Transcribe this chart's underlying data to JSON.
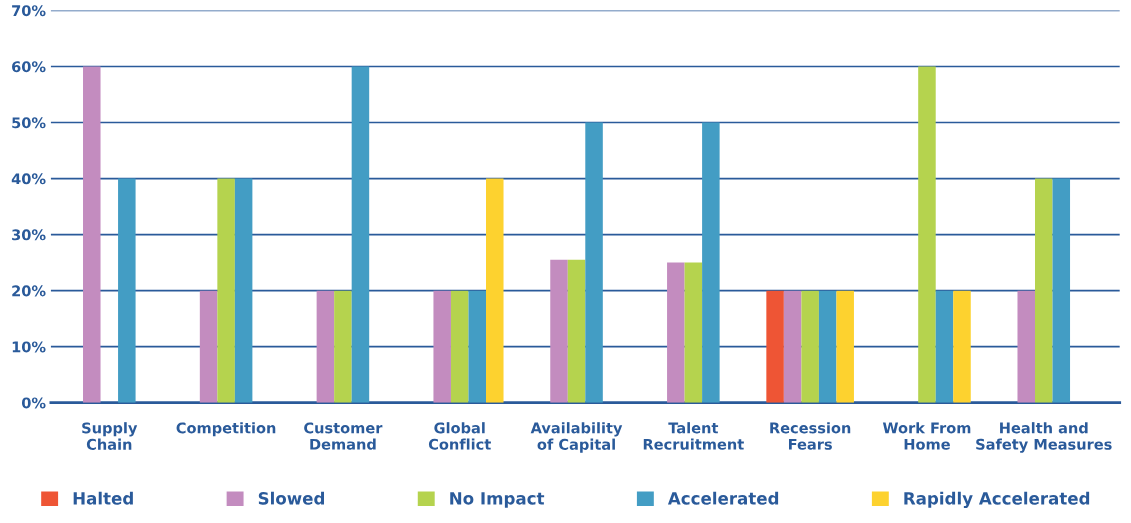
{
  "chart_data": {
    "type": "bar",
    "categories": [
      "Supply\nChain",
      "Competition",
      "Customer\nDemand",
      "Global\nConflict",
      "Availability\nof Capital",
      "Talent\nRecruitment",
      "Recession\nFears",
      "Work From\nHome",
      "Health and\nSafety Measures"
    ],
    "series": [
      {
        "name": "Halted",
        "color": "#ee5535",
        "values": [
          null,
          null,
          null,
          null,
          null,
          null,
          20,
          null,
          null
        ]
      },
      {
        "name": "Slowed",
        "color": "#c38cbf",
        "values": [
          60,
          20,
          20,
          20,
          25.5,
          25,
          20,
          null,
          20
        ]
      },
      {
        "name": "No Impact",
        "color": "#b5d34e",
        "values": [
          null,
          40,
          20,
          20,
          25.5,
          25,
          20,
          60,
          40
        ]
      },
      {
        "name": "Accelerated",
        "color": "#439dc4",
        "values": [
          40,
          40,
          60,
          20,
          50,
          50,
          20,
          20,
          40
        ]
      },
      {
        "name": "Rapidly Accelerated",
        "color": "#fdd22f",
        "values": [
          null,
          null,
          null,
          40,
          null,
          null,
          20,
          20,
          null
        ]
      }
    ],
    "ylim": [
      0,
      70
    ],
    "yticks": [
      {
        "value": 0,
        "label": "0%"
      },
      {
        "value": 10,
        "label": "10%"
      },
      {
        "value": 20,
        "label": "20%"
      },
      {
        "value": 30,
        "label": "30%"
      },
      {
        "value": 40,
        "label": "40%"
      },
      {
        "value": 50,
        "label": "50%"
      },
      {
        "value": 60,
        "label": "60%"
      },
      {
        "value": 70,
        "label": "70%"
      }
    ],
    "grid": "y",
    "legend": "bottom"
  }
}
